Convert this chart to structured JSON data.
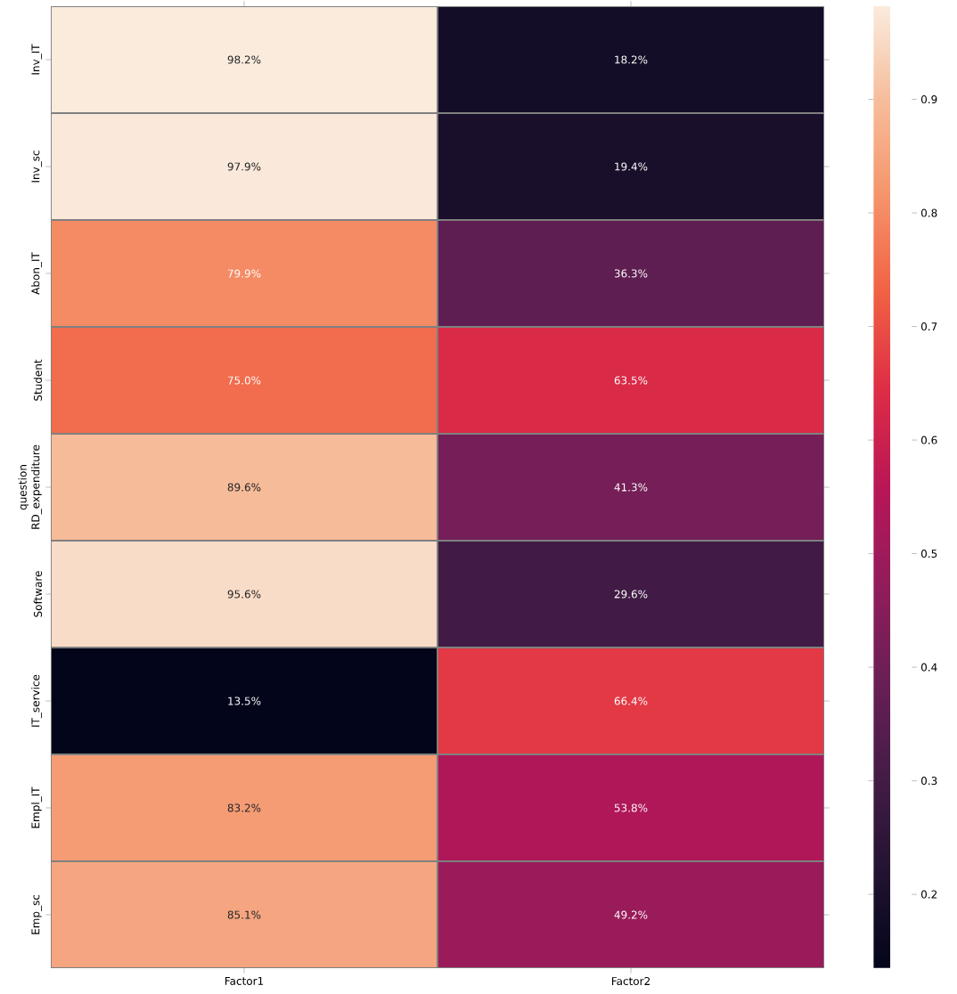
{
  "chart_data": {
    "type": "heatmap",
    "ylabel": "question",
    "categories": [
      "Factor1",
      "Factor2"
    ],
    "y_categories": [
      "Inv_IT",
      "Inv_sc",
      "Abon_IT",
      "Student",
      "RD_expenditure",
      "Software",
      "IT_service",
      "Empl_IT",
      "Emp_sc"
    ],
    "cells": [
      [
        0.982,
        0.182
      ],
      [
        0.979,
        0.194
      ],
      [
        0.799,
        0.363
      ],
      [
        0.75,
        0.635
      ],
      [
        0.896,
        0.413
      ],
      [
        0.956,
        0.296
      ],
      [
        0.135,
        0.664
      ],
      [
        0.832,
        0.538
      ],
      [
        0.851,
        0.492
      ]
    ],
    "cell_labels": [
      [
        "98.2%",
        "18.2%"
      ],
      [
        "97.9%",
        "19.4%"
      ],
      [
        "79.9%",
        "36.3%"
      ],
      [
        "75.0%",
        "63.5%"
      ],
      [
        "89.6%",
        "41.3%"
      ],
      [
        "95.6%",
        "29.6%"
      ],
      [
        "13.5%",
        "66.4%"
      ],
      [
        "83.2%",
        "53.8%"
      ],
      [
        "85.1%",
        "49.2%"
      ]
    ],
    "clim": [
      0.135,
      0.982
    ],
    "cticks": [
      0.2,
      0.3,
      0.4,
      0.5,
      0.6,
      0.7,
      0.8,
      0.9
    ]
  }
}
